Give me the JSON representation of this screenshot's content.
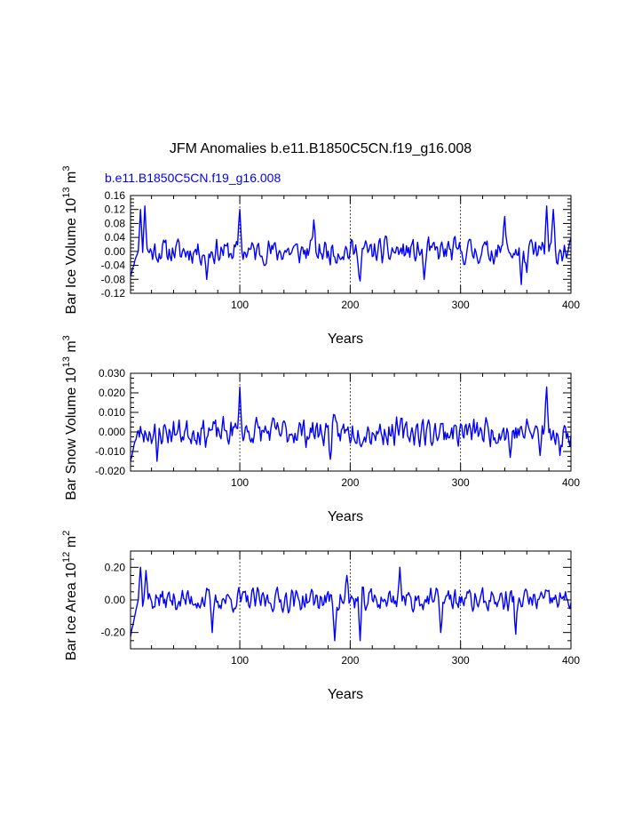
{
  "title": "JFM Anomalies b.e11.B1850C5CN.f19_g16.008",
  "subtitle": "b.e11.B1850C5CN.f19_g16.008",
  "colors": {
    "series": "#0000ff",
    "subtitle": "#0000ff",
    "axes": "#000000",
    "grid": "#000000"
  },
  "chart_data": [
    {
      "type": "line",
      "name": "ice-volume",
      "ylabel": {
        "main": "Bar Ice Volume 10",
        "exp": "13",
        "unit": " m",
        "unit_exp": "3"
      },
      "xlabel": "Years",
      "xlim": [
        1,
        400
      ],
      "ylim": [
        -0.12,
        0.16
      ],
      "xticks": [
        100,
        200,
        300,
        400
      ],
      "xtick_labels": [
        "100",
        "200",
        "300",
        "400"
      ],
      "yticks": [
        -0.12,
        -0.08,
        -0.04,
        0.0,
        0.04,
        0.08,
        0.12,
        0.16
      ],
      "ytick_labels": [
        "-0.12",
        "-0.08",
        "-0.04",
        "0.00",
        "0.04",
        "0.08",
        "0.12",
        "0.16"
      ],
      "grid_x": [
        100,
        200,
        300
      ],
      "series": [
        {
          "name": "b.e11.B1850C5CN.f19_g16.008",
          "x": [
            1,
            400
          ],
          "gen": {
            "seed": 11,
            "amp": 0.028,
            "start": -0.07,
            "peaks": [
              [
                10,
                0.12
              ],
              [
                14,
                0.13
              ],
              [
                100,
                0.12
              ],
              [
                167,
                0.09
              ],
              [
                340,
                0.1
              ],
              [
                378,
                0.13
              ],
              [
                384,
                0.12
              ],
              [
                70,
                -0.08
              ],
              [
                209,
                -0.085
              ],
              [
                267,
                -0.08
              ],
              [
                355,
                -0.095
              ],
              [
                360,
                -0.06
              ]
            ],
            "min": -0.1,
            "max": 0.135
          }
        }
      ]
    },
    {
      "type": "line",
      "name": "snow-volume",
      "ylabel": {
        "main": "Bar Snow Volume 10",
        "exp": "13",
        "unit": " m",
        "unit_exp": "3"
      },
      "xlabel": "Years",
      "xlim": [
        1,
        400
      ],
      "ylim": [
        -0.02,
        0.03
      ],
      "xticks": [
        100,
        200,
        300,
        400
      ],
      "xtick_labels": [
        "100",
        "200",
        "300",
        "400"
      ],
      "yticks": [
        -0.02,
        -0.01,
        0.0,
        0.01,
        0.02,
        0.03
      ],
      "ytick_labels": [
        "-0.020",
        "-0.010",
        "0.000",
        "0.010",
        "0.020",
        "0.030"
      ],
      "grid_x": [
        100,
        200,
        300
      ],
      "series": [
        {
          "name": "b.e11.B1850C5CN.f19_g16.008",
          "x": [
            1,
            400
          ],
          "gen": {
            "seed": 23,
            "amp": 0.0055,
            "start": -0.015,
            "peaks": [
              [
                100,
                0.023
              ],
              [
                378,
                0.023
              ],
              [
                25,
                -0.015
              ],
              [
                182,
                -0.014
              ],
              [
                345,
                -0.013
              ],
              [
                372,
                -0.012
              ],
              [
                390,
                -0.012
              ]
            ],
            "min": -0.016,
            "max": 0.024
          }
        }
      ]
    },
    {
      "type": "line",
      "name": "ice-area",
      "ylabel": {
        "main": "Bar Ice Area 10",
        "exp": "12",
        "unit": " m",
        "unit_exp": "2"
      },
      "xlabel": "Years",
      "xlim": [
        1,
        400
      ],
      "ylim": [
        -0.3,
        0.3
      ],
      "xticks": [
        100,
        200,
        300,
        400
      ],
      "xtick_labels": [
        "100",
        "200",
        "300",
        "400"
      ],
      "yticks": [
        -0.2,
        0.0,
        0.2
      ],
      "ytick_labels": [
        "-0.20",
        "0.00",
        "0.20"
      ],
      "grid_x": [
        100,
        200,
        300
      ],
      "series": [
        {
          "name": "b.e11.B1850C5CN.f19_g16.008",
          "x": [
            1,
            400
          ],
          "gen": {
            "seed": 37,
            "amp": 0.055,
            "start": -0.22,
            "peaks": [
              [
                10,
                0.2
              ],
              [
                15,
                0.18
              ],
              [
                75,
                -0.2
              ],
              [
                186,
                -0.25
              ],
              [
                197,
                0.15
              ],
              [
                209,
                -0.25
              ],
              [
                245,
                0.2
              ],
              [
                282,
                -0.2
              ],
              [
                350,
                -0.21
              ]
            ],
            "min": -0.26,
            "max": 0.21
          }
        }
      ]
    }
  ]
}
